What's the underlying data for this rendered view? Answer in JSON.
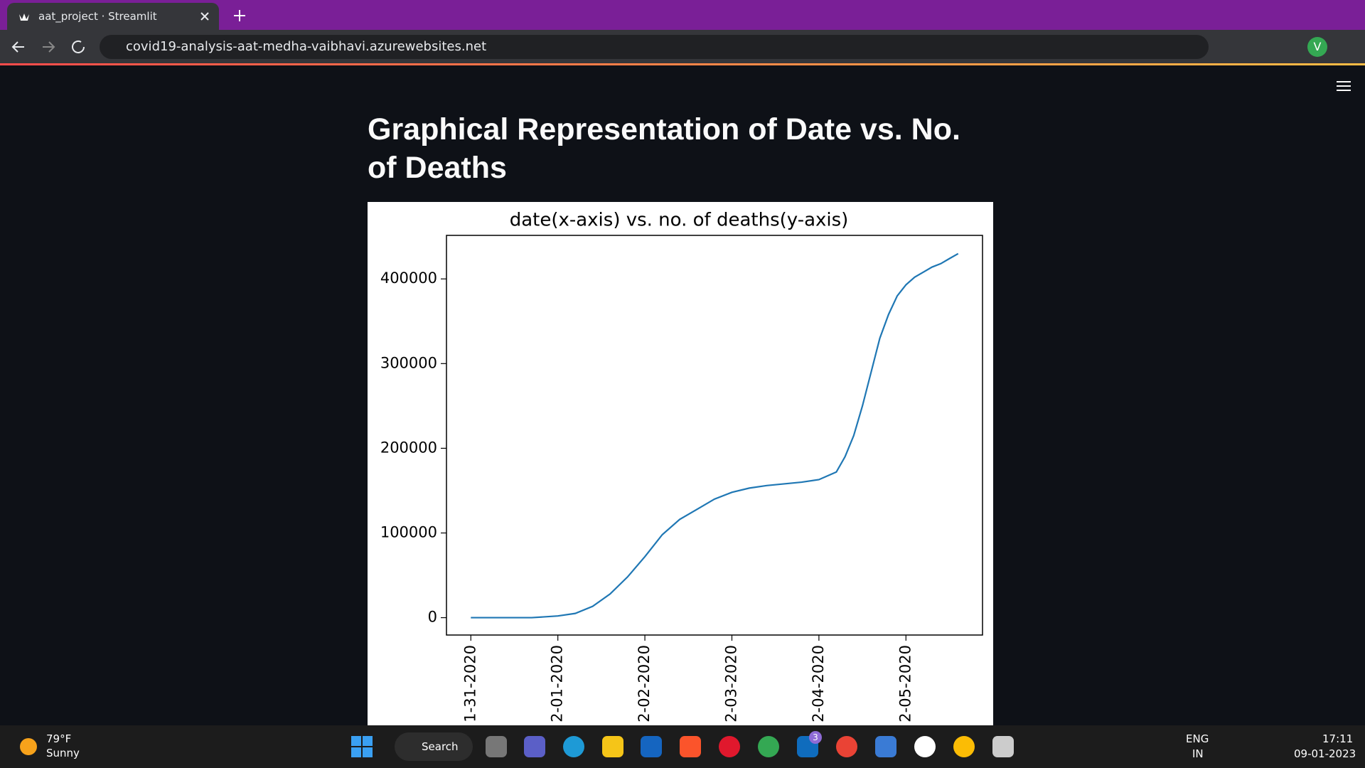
{
  "browser": {
    "tab_title": "aat_project · Streamlit",
    "url": "covid19-analysis-aat-medha-vaibhavi.azurewebsites.net",
    "avatar": "V"
  },
  "page": {
    "heading": "Graphical Representation of Date vs. No. of Deaths"
  },
  "chart_data": {
    "type": "line",
    "title": "date(x-axis) vs. no. of deaths(y-axis)",
    "series": [
      {
        "color": "#1f77b4",
        "x": [
          0,
          40,
          70,
          100,
          120,
          140,
          160,
          180,
          200,
          220,
          240,
          260,
          280,
          300,
          320,
          340,
          360,
          380,
          400,
          420,
          430,
          440,
          450,
          460,
          470,
          480,
          490,
          500,
          510,
          520,
          530,
          540,
          550,
          560
        ],
        "values": [
          0,
          0,
          0,
          2000,
          5000,
          13400,
          28000,
          48000,
          72000,
          98000,
          116000,
          128000,
          140000,
          148000,
          153000,
          156000,
          158000,
          160000,
          163000,
          172000,
          190000,
          215000,
          250000,
          290000,
          330000,
          358000,
          380000,
          393000,
          402000,
          408000,
          414000,
          418000,
          424000,
          429800
        ]
      }
    ],
    "xlim": [
      -28,
      588
    ],
    "ylim": [
      -20500,
      451400
    ],
    "xticks": [
      {
        "value": 0,
        "label": "1-31-2020"
      },
      {
        "value": 100,
        "label": "2-01-2020"
      },
      {
        "value": 200,
        "label": "2-02-2020"
      },
      {
        "value": 300,
        "label": "2-03-2020"
      },
      {
        "value": 400,
        "label": "2-04-2020"
      },
      {
        "value": 500,
        "label": "2-05-2020"
      }
    ],
    "yticks": [
      0,
      100000,
      200000,
      300000,
      400000
    ],
    "grid": false
  },
  "taskbar": {
    "temperature": "79°F",
    "weather": "Sunny",
    "search": "Search",
    "badge": "3",
    "language": "ENG",
    "region": "IN",
    "time": "17:11",
    "date": "09-01-2023"
  }
}
